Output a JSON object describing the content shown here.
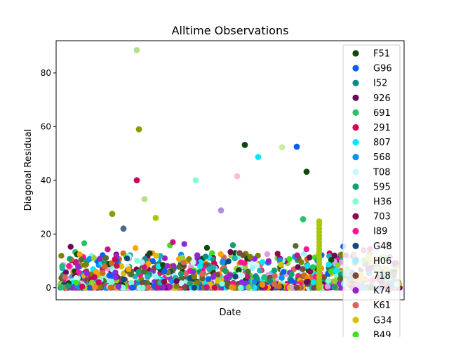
{
  "chart_data": {
    "type": "scatter",
    "title": "Alltime Observations",
    "xlabel": "Date",
    "ylabel": "Diagonal Residual",
    "ylim": [
      -4.5,
      92
    ],
    "y_ticks": [
      0,
      20,
      40,
      60,
      80
    ],
    "x_tick_labels_shown": false,
    "grid": false,
    "legend_position": "top-right",
    "legend_entries": [
      {
        "name": "F51",
        "color": "#0b4a0b"
      },
      {
        "name": "G96",
        "color": "#0b5ff0"
      },
      {
        "name": "I52",
        "color": "#0f8a8a"
      },
      {
        "name": "926",
        "color": "#6a0a5a"
      },
      {
        "name": "691",
        "color": "#24c36a"
      },
      {
        "name": "291",
        "color": "#d1005a"
      },
      {
        "name": "807",
        "color": "#00e8ff"
      },
      {
        "name": "568",
        "color": "#0a90f0"
      },
      {
        "name": "T08",
        "color": "#c6f8ff"
      },
      {
        "name": "595",
        "color": "#12a070"
      },
      {
        "name": "H36",
        "color": "#7fffd4"
      },
      {
        "name": "703",
        "color": "#8b0a50"
      },
      {
        "name": "I89",
        "color": "#ff1493"
      },
      {
        "name": "G48",
        "color": "#0f4a7a"
      },
      {
        "name": "H06",
        "color": "#a0f0ff"
      },
      {
        "name": "718",
        "color": "#7a4a3a"
      },
      {
        "name": "K74",
        "color": "#9b20c8"
      },
      {
        "name": "K61",
        "color": "#e0605a"
      },
      {
        "name": "G34",
        "color": "#d6c000"
      },
      {
        "name": "B49",
        "color": "#40e020"
      }
    ],
    "notable_points": [
      {
        "series": "unlabeled",
        "y": 88.5,
        "color": "#b5e08a"
      },
      {
        "series": "unlabeled",
        "y": 59,
        "color": "#8c9a00"
      },
      {
        "series": "F51",
        "y": 53.2,
        "color": "#0b4a0b"
      },
      {
        "series": "G96",
        "y": 52.5,
        "color": "#0b5ff0"
      },
      {
        "series": "unlabeled",
        "y": 52.3,
        "color": "#c8f0a0"
      },
      {
        "series": "807",
        "y": 48.7,
        "color": "#00e8ff"
      },
      {
        "series": "F51",
        "y": 43.2,
        "color": "#0b4a0b"
      },
      {
        "series": "unlabeled",
        "y": 41.5,
        "color": "#ffc0cb"
      },
      {
        "series": "H36",
        "y": 40,
        "color": "#7fffd4"
      },
      {
        "series": "291",
        "y": 40,
        "color": "#d1005a"
      },
      {
        "series": "unlabeled",
        "y": 33,
        "color": "#b5e08a"
      },
      {
        "series": "K74",
        "y": 28.8,
        "color": "#b08fd8"
      },
      {
        "series": "unlabeled",
        "y": 27.5,
        "color": "#8c9a00"
      },
      {
        "series": "691",
        "y": 25.5,
        "color": "#24c36a"
      },
      {
        "series": "G34",
        "y": 26,
        "color": "#a8c800"
      },
      {
        "series": "G48",
        "y": 22,
        "color": "#4a6a8a"
      }
    ]
  }
}
